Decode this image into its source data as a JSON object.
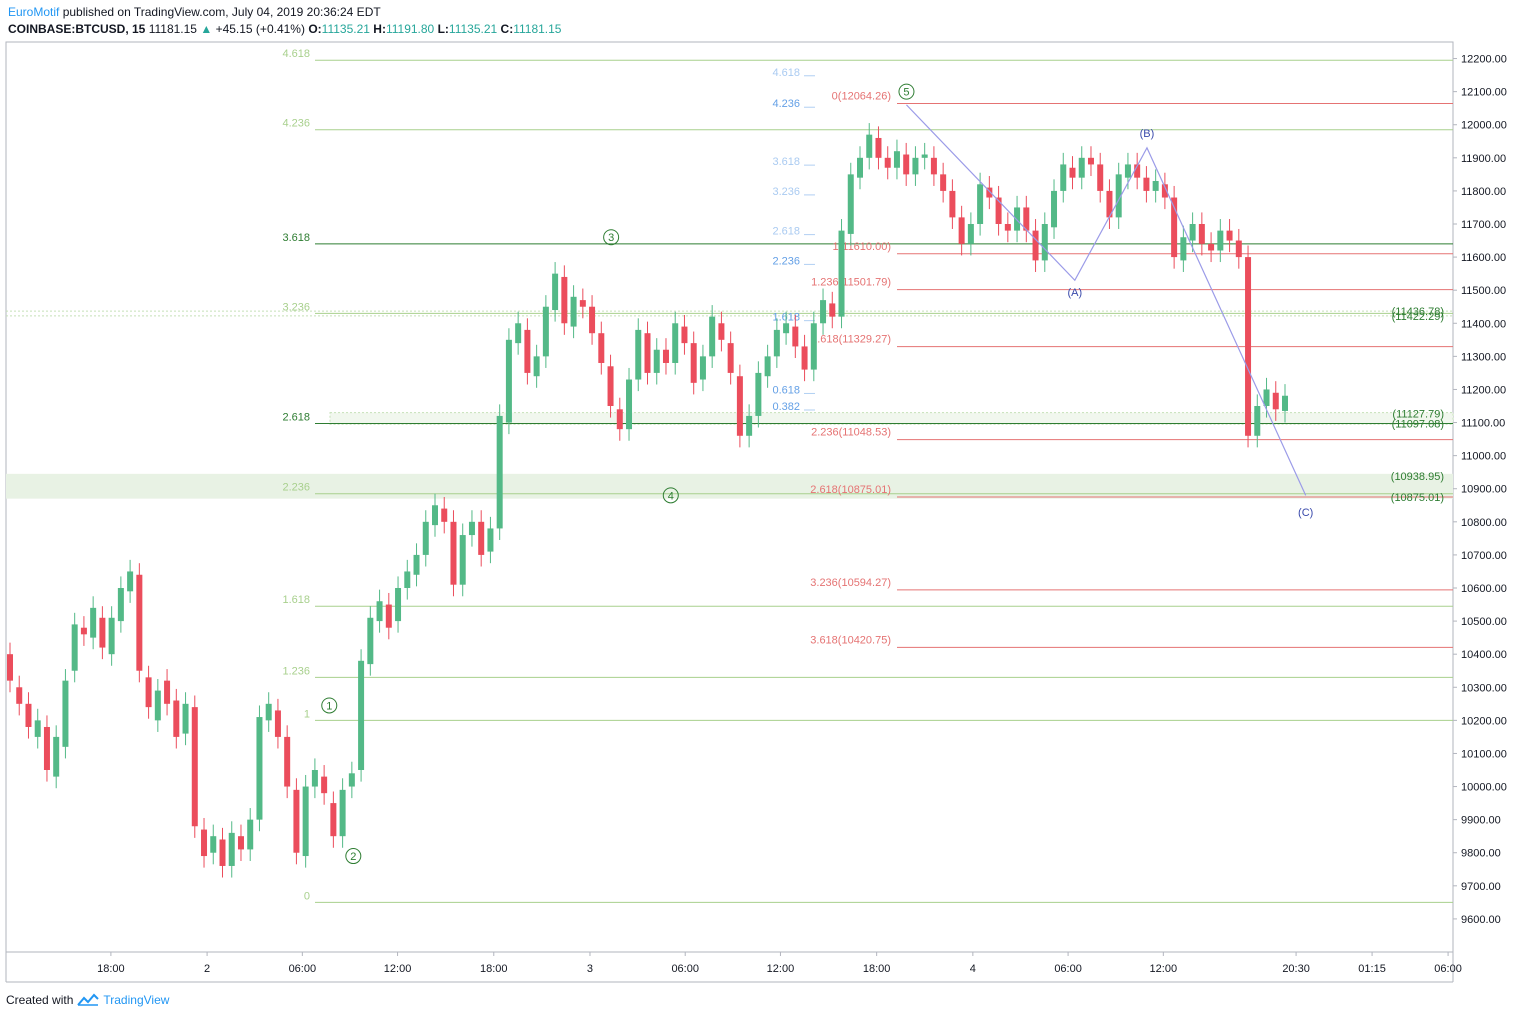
{
  "header": {
    "author": "EuroMotif",
    "published_text": "published on TradingView.com, July 04, 2019 20:36:24 EDT",
    "symbol": "COINBASE:BTCUSD, 15",
    "last": "11181.15",
    "change": "+45.15 (+0.41%)",
    "o_label": "O:",
    "o_value": "11135.21",
    "h_label": "H:",
    "h_value": "11191.80",
    "l_label": "L:",
    "l_value": "11135.21",
    "c_label": "C:",
    "c_value": "11181.15"
  },
  "footer": {
    "created_with": "Created with",
    "brand": "TradingView"
  },
  "colors": {
    "up": "#53b987",
    "down": "#eb4d5c",
    "fib_light": "#a8d08d",
    "fib_dark": "#2e7d32",
    "ext_red": "#e57373",
    "ext_blue": "#64a0e6",
    "wave_line": "#9b9be8",
    "wave_label": "#3949ab",
    "impulse_label": "#2e7d32",
    "axis_text": "#131722",
    "grid": "#e0e3eb"
  },
  "chart_data": {
    "type": "candlestick",
    "title": "",
    "ylim": [
      9500,
      12250
    ],
    "y_ticks": [
      "12200.00",
      "12100.00",
      "12000.00",
      "11900.00",
      "11800.00",
      "11700.00",
      "11600.00",
      "11500.00",
      "11400.00",
      "11300.00",
      "11200.00",
      "11100.00",
      "11000.00",
      "10900.00",
      "10800.00",
      "10700.00",
      "10600.00",
      "10500.00",
      "10400.00",
      "10300.00",
      "10200.00",
      "10100.00",
      "10000.00",
      "9900.00",
      "9800.00",
      "9700.00",
      "9600.00"
    ],
    "x_ticks": [
      {
        "label": "18:00",
        "t": 1.08
      },
      {
        "label": "2",
        "t": 2.08
      },
      {
        "label": "06:00",
        "t": 3.07
      },
      {
        "label": "12:00",
        "t": 4.06
      },
      {
        "label": "18:00",
        "t": 5.06
      },
      {
        "label": "3",
        "t": 6.06
      },
      {
        "label": "06:00",
        "t": 7.05
      },
      {
        "label": "12:00",
        "t": 8.04
      },
      {
        "label": "18:00",
        "t": 9.04
      },
      {
        "label": "4",
        "t": 10.04
      },
      {
        "label": "06:00",
        "t": 11.03
      },
      {
        "label": "12:00",
        "t": 12.02
      },
      {
        "label": "20:30",
        "t": 13.4
      },
      {
        "label": "01:15",
        "t": 14.19
      },
      {
        "label": "06:00",
        "t": 14.98
      }
    ],
    "candles": [
      [
        10400,
        10320
      ],
      [
        10300,
        10250
      ],
      [
        10250,
        10180
      ],
      [
        10150,
        10200
      ],
      [
        10180,
        10050
      ],
      [
        10030,
        10150
      ],
      [
        10120,
        10320
      ],
      [
        10350,
        10490
      ],
      [
        10480,
        10460
      ],
      [
        10450,
        10540
      ],
      [
        10510,
        10420
      ],
      [
        10400,
        10510
      ],
      [
        10500,
        10600
      ],
      [
        10590,
        10650
      ],
      [
        10640,
        10350
      ],
      [
        10330,
        10240
      ],
      [
        10200,
        10290
      ],
      [
        10320,
        10250
      ],
      [
        10260,
        10150
      ],
      [
        10160,
        10250
      ],
      [
        10240,
        9880
      ],
      [
        9870,
        9790
      ],
      [
        9800,
        9850
      ],
      [
        9840,
        9760
      ],
      [
        9760,
        9860
      ],
      [
        9850,
        9810
      ],
      [
        9810,
        9900
      ],
      [
        9900,
        10210
      ],
      [
        10200,
        10250
      ],
      [
        10230,
        10150
      ],
      [
        10150,
        10000
      ],
      [
        9990,
        9800
      ],
      [
        9790,
        10000
      ],
      [
        10000,
        10050
      ],
      [
        10030,
        9980
      ],
      [
        9950,
        9850
      ],
      [
        9850,
        9990
      ],
      [
        10000,
        10040
      ],
      [
        10050,
        10380
      ],
      [
        10370,
        10510
      ],
      [
        10500,
        10560
      ],
      [
        10550,
        10480
      ],
      [
        10500,
        10600
      ],
      [
        10600,
        10650
      ],
      [
        10640,
        10700
      ],
      [
        10700,
        10800
      ],
      [
        10790,
        10850
      ],
      [
        10840,
        10800
      ],
      [
        10800,
        10610
      ],
      [
        10610,
        10760
      ],
      [
        10760,
        10800
      ],
      [
        10800,
        10700
      ],
      [
        10710,
        10780
      ],
      [
        10780,
        11120
      ],
      [
        11100,
        11350
      ],
      [
        11340,
        11400
      ],
      [
        11380,
        11250
      ],
      [
        11240,
        11300
      ],
      [
        11300,
        11450
      ],
      [
        11440,
        11550
      ],
      [
        11540,
        11400
      ],
      [
        11390,
        11480
      ],
      [
        11470,
        11450
      ],
      [
        11450,
        11370
      ],
      [
        11370,
        11280
      ],
      [
        11270,
        11150
      ],
      [
        11140,
        11080
      ],
      [
        11080,
        11230
      ],
      [
        11230,
        11380
      ],
      [
        11370,
        11250
      ],
      [
        11250,
        11320
      ],
      [
        11320,
        11280
      ],
      [
        11280,
        11400
      ],
      [
        11390,
        11340
      ],
      [
        11340,
        11220
      ],
      [
        11230,
        11300
      ],
      [
        11300,
        11420
      ],
      [
        11400,
        11350
      ],
      [
        11340,
        11250
      ],
      [
        11240,
        11060
      ],
      [
        11060,
        11120
      ],
      [
        11120,
        11250
      ],
      [
        11240,
        11300
      ],
      [
        11300,
        11380
      ],
      [
        11370,
        11400
      ],
      [
        11390,
        11330
      ],
      [
        11330,
        11260
      ],
      [
        11260,
        11400
      ],
      [
        11400,
        11470
      ],
      [
        11460,
        11420
      ],
      [
        11420,
        11680
      ],
      [
        11670,
        11850
      ],
      [
        11840,
        11900
      ],
      [
        11900,
        11970
      ],
      [
        11960,
        11900
      ],
      [
        11900,
        11870
      ],
      [
        11870,
        11920
      ],
      [
        11910,
        11850
      ],
      [
        11850,
        11900
      ],
      [
        11900,
        11910
      ],
      [
        11900,
        11850
      ],
      [
        11850,
        11800
      ],
      [
        11800,
        11720
      ],
      [
        11720,
        11640
      ],
      [
        11640,
        11700
      ],
      [
        11700,
        11820
      ],
      [
        11810,
        11780
      ],
      [
        11780,
        11700
      ],
      [
        11700,
        11680
      ],
      [
        11680,
        11750
      ],
      [
        11750,
        11680
      ],
      [
        11680,
        11590
      ],
      [
        11590,
        11700
      ],
      [
        11690,
        11800
      ],
      [
        11800,
        11880
      ],
      [
        11870,
        11840
      ],
      [
        11840,
        11900
      ],
      [
        11900,
        11880
      ],
      [
        11880,
        11800
      ],
      [
        11800,
        11720
      ],
      [
        11720,
        11850
      ],
      [
        11840,
        11880
      ],
      [
        11880,
        11840
      ],
      [
        11840,
        11800
      ],
      [
        11800,
        11830
      ],
      [
        11820,
        11780
      ],
      [
        11780,
        11600
      ],
      [
        11590,
        11660
      ],
      [
        11650,
        11700
      ],
      [
        11700,
        11640
      ],
      [
        11640,
        11620
      ],
      [
        11620,
        11680
      ],
      [
        11680,
        11650
      ],
      [
        11650,
        11600
      ],
      [
        11600,
        11060
      ],
      [
        11060,
        11150
      ],
      [
        11150,
        11200
      ],
      [
        11190,
        11140
      ],
      [
        11135,
        11181
      ]
    ],
    "fib_retracement_levels": [
      {
        "label": "0",
        "value": 9650
      },
      {
        "label": "1",
        "value": 10200
      },
      {
        "label": "1.236",
        "value": 10330
      },
      {
        "label": "1.618",
        "value": 10545
      },
      {
        "label": "2.236",
        "value": 10885
      },
      {
        "label": "2.618",
        "value": 11097
      },
      {
        "label": "3.236",
        "value": 11430
      },
      {
        "label": "3.618",
        "value": 11640
      },
      {
        "label": "4.236",
        "value": 11985
      },
      {
        "label": "4.618",
        "value": 12195
      }
    ],
    "fib_extension_levels": [
      {
        "label": "0(12064.26)",
        "value": 12064.26
      },
      {
        "label": "1(11610.00)",
        "value": 11610.0
      },
      {
        "label": "1.236(11501.79)",
        "value": 11501.79
      },
      {
        "label": "1.618(11329.27)",
        "value": 11329.27
      },
      {
        "label": "2.236(11048.53)",
        "value": 11048.53
      },
      {
        "label": "2.618(10875.01)",
        "value": 10875.01
      },
      {
        "label": "3.236(10594.27)",
        "value": 10594.27
      },
      {
        "label": "3.618(10420.75)",
        "value": 10420.75
      }
    ],
    "blue_ext_labels": [
      {
        "label": "4.618",
        "value": 12160
      },
      {
        "label": "4.236",
        "value": 12065
      },
      {
        "label": "3.618",
        "value": 11890
      },
      {
        "label": "3.236",
        "value": 11800
      },
      {
        "label": "2.618",
        "value": 11680
      },
      {
        "label": "2.236",
        "value": 11590
      },
      {
        "label": "1.618",
        "value": 11420
      },
      {
        "label": "0.618",
        "value": 11200
      },
      {
        "label": "0.382",
        "value": 11150
      }
    ],
    "right_labels": [
      "(11436.78)",
      "(11422.29)",
      "(11127.79)",
      "(11097.08)",
      "(10938.95)",
      "(10875.01)"
    ],
    "right_label_values": [
      11436.78,
      11422.29,
      11127.79,
      11097.08,
      10938.95,
      10875.01
    ],
    "impulse_waves": [
      {
        "label": "1",
        "t": 3.35,
        "value": 10245
      },
      {
        "label": "2",
        "t": 3.6,
        "value": 9790
      },
      {
        "label": "3",
        "t": 6.28,
        "value": 11660
      },
      {
        "label": "4",
        "t": 6.9,
        "value": 10880
      },
      {
        "label": "5",
        "t": 9.35,
        "value": 12100
      }
    ],
    "corrective_waves": [
      {
        "label": "(A)",
        "t": 11.1,
        "value": 11495
      },
      {
        "label": "(B)",
        "t": 11.85,
        "value": 11975
      },
      {
        "label": "(C)",
        "t": 13.5,
        "value": 10830
      }
    ],
    "corrective_path": [
      [
        9.35,
        12060
      ],
      [
        11.1,
        11530
      ],
      [
        11.85,
        11930
      ],
      [
        13.5,
        10880
      ]
    ]
  }
}
